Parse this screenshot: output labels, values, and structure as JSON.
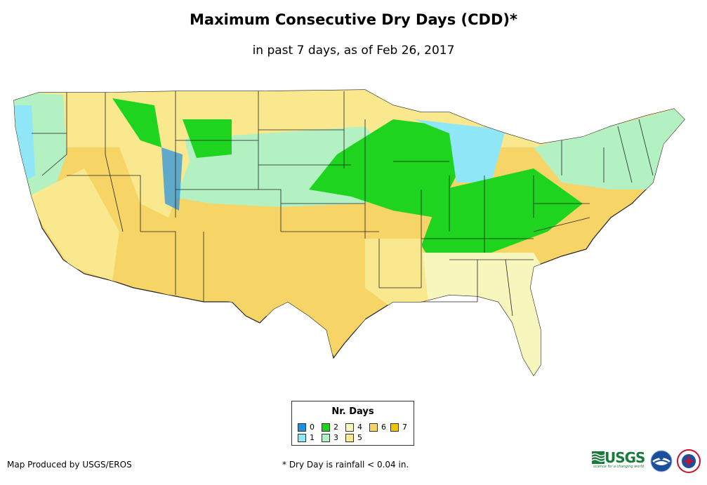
{
  "header": {
    "title": "Maximum Consecutive Dry Days (CDD)*",
    "subtitle": "in past 7 days, as of Feb 26, 2017"
  },
  "legend": {
    "title": "Nr. Days",
    "items": [
      {
        "label": "0",
        "color": "#1f8fe0"
      },
      {
        "label": "1",
        "color": "#8fe6f7"
      },
      {
        "label": "2",
        "color": "#1ed41e"
      },
      {
        "label": "3",
        "color": "#b3f0c2"
      },
      {
        "label": "4",
        "color": "#f7f7bd"
      },
      {
        "label": "5",
        "color": "#fae88f"
      },
      {
        "label": "6",
        "color": "#f7d466"
      },
      {
        "label": "7",
        "color": "#f5c200"
      }
    ]
  },
  "footer": {
    "credit": "Map Produced by USGS/EROS",
    "note": "* Dry Day is rainfall < 0.04 in."
  },
  "logos": {
    "usgs_text": "USGS",
    "usgs_tagline": "science for a changing world",
    "noaa_icon": "noaa-logo",
    "nws_icon": "nws-logo"
  },
  "map": {
    "region": "Contiguous United States",
    "border_color": "#222222"
  }
}
